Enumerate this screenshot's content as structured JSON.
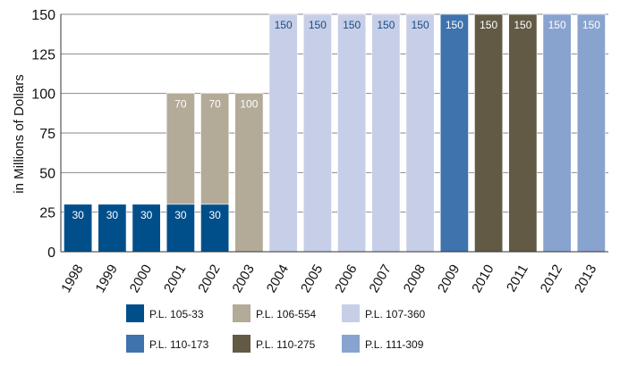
{
  "chart_data": {
    "type": "bar",
    "stacked": true,
    "title": "",
    "xlabel": "",
    "ylabel": "in Millions of Dollars",
    "ylim": [
      0,
      150
    ],
    "yticks": [
      0,
      25,
      50,
      75,
      100,
      125,
      150
    ],
    "grid": "horizontal",
    "legend_position": "bottom",
    "categories": [
      "1998",
      "1999",
      "2000",
      "2001",
      "2002",
      "2003",
      "2004",
      "2005",
      "2006",
      "2007",
      "2008",
      "2009",
      "2010",
      "2011",
      "2012",
      "2013"
    ],
    "series": [
      {
        "name": "P.L. 105-33",
        "color": "#004f8b",
        "label_color": "#ffffff",
        "values": [
          30,
          30,
          30,
          30,
          30,
          0,
          0,
          0,
          0,
          0,
          0,
          0,
          0,
          0,
          0,
          0
        ]
      },
      {
        "name": "P.L. 106-554",
        "color": "#b3aa98",
        "label_color": "#ffffff",
        "values": [
          0,
          0,
          0,
          70,
          70,
          100,
          0,
          0,
          0,
          0,
          0,
          0,
          0,
          0,
          0,
          0
        ]
      },
      {
        "name": "P.L. 107-360",
        "color": "#c6cfe7",
        "label_color": "#1a4a86",
        "values": [
          0,
          0,
          0,
          0,
          0,
          0,
          150,
          150,
          150,
          150,
          150,
          0,
          0,
          0,
          0,
          0
        ]
      },
      {
        "name": "P.L. 110-173",
        "color": "#3e73ad",
        "label_color": "#ffffff",
        "values": [
          0,
          0,
          0,
          0,
          0,
          0,
          0,
          0,
          0,
          0,
          0,
          150,
          0,
          0,
          0,
          0
        ]
      },
      {
        "name": "P.L. 110-275",
        "color": "#625a45",
        "label_color": "#ffffff",
        "values": [
          0,
          0,
          0,
          0,
          0,
          0,
          0,
          0,
          0,
          0,
          0,
          0,
          150,
          150,
          0,
          0
        ]
      },
      {
        "name": "P.L. 111-309",
        "color": "#89a3cf",
        "label_color": "#ffffff",
        "values": [
          0,
          0,
          0,
          0,
          0,
          0,
          0,
          0,
          0,
          0,
          0,
          0,
          0,
          0,
          150,
          150
        ]
      }
    ]
  }
}
